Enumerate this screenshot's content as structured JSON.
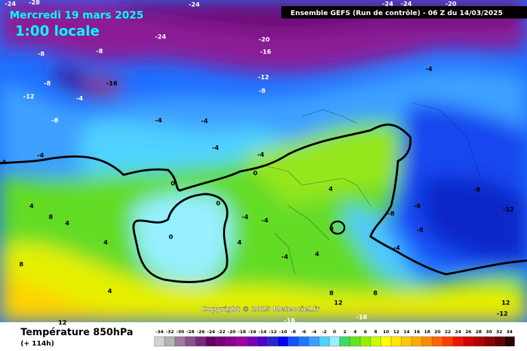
{
  "map": {
    "date": "Mercredi 19 mars 2025",
    "time": "1:00 locale",
    "model": "Ensemble GEFS  (Run de contrôle)  - 06 Z du 14/03/2025",
    "copyright": "Copyright © 2025 Meteociel.fr",
    "contour_labels": [
      -24,
      -28,
      -24,
      -24,
      -20,
      -16,
      -8,
      -8,
      -24,
      -24,
      -20,
      -4,
      -12,
      -8,
      -16,
      -8,
      -12,
      -4,
      -8,
      -4,
      -4,
      -4,
      -4,
      -4,
      -4,
      0,
      0,
      0,
      4,
      -8,
      -8,
      -12,
      -8,
      -8,
      0,
      -4,
      -4,
      4,
      8,
      4,
      0,
      4,
      4,
      -4,
      -4,
      4,
      8,
      4,
      8,
      8,
      12,
      12,
      -12,
      -16,
      -16,
      12
    ]
  },
  "legend": {
    "title": "Température 850hPa",
    "subtitle": "(+ 114h)",
    "ticks": [
      -34,
      -32,
      -30,
      -28,
      -26,
      -24,
      -22,
      -20,
      -18,
      -16,
      -14,
      -12,
      -10,
      -8,
      -6,
      -4,
      -2,
      0,
      2,
      4,
      6,
      8,
      10,
      12,
      14,
      16,
      18,
      20,
      22,
      24,
      26,
      28,
      30,
      32,
      34
    ],
    "colors": [
      "#d2d2d2",
      "#b4b4b4",
      "#a078a0",
      "#8c508c",
      "#782878",
      "#640064",
      "#780078",
      "#8c008c",
      "#a000a0",
      "#7800b4",
      "#5000c8",
      "#2828c8",
      "#0000ff",
      "#1450ff",
      "#1e78ff",
      "#3ca0ff",
      "#50d2ff",
      "#96f0ff",
      "#3cdc64",
      "#64e61e",
      "#96f000",
      "#c8ff00",
      "#ffff00",
      "#ffe600",
      "#ffc800",
      "#ffaa00",
      "#ff8c00",
      "#ff6400",
      "#ff3c00",
      "#f01400",
      "#d20000",
      "#b40000",
      "#8c0000",
      "#640000",
      "#280000"
    ]
  }
}
